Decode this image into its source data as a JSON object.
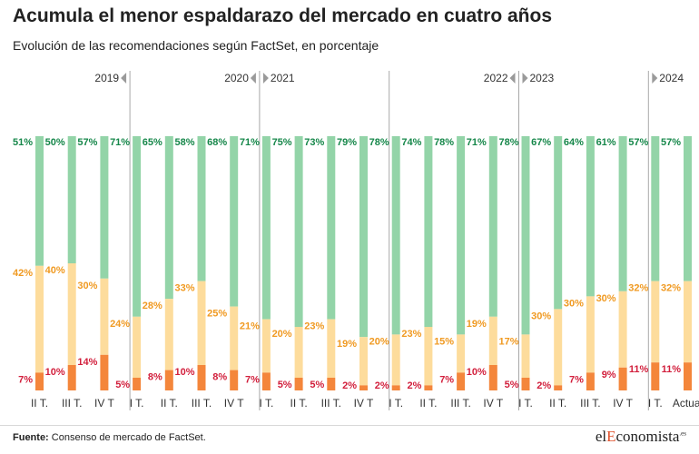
{
  "header": {
    "title": "Acumula el menor espaldarazo del mercado en cuatro años",
    "subtitle": "Evolución de las recomendaciones según FactSet, en porcentaje"
  },
  "footer": {
    "source_label": "Fuente:",
    "source_text": "Consenso de mercado de FactSet.",
    "logo_pre": "el",
    "logo_accent": "E",
    "logo_post": "conomista",
    "logo_suffix": ".es"
  },
  "colors": {
    "buy": "#93d4a8",
    "hold": "#fddc9c",
    "sell": "#f4863b",
    "buy_text": "#16874a",
    "hold_text": "#f09a22",
    "sell_text": "#d21f3c"
  },
  "chart_data": {
    "type": "bar",
    "stacked": true,
    "ylim": [
      0,
      100
    ],
    "categories": [
      "II T.",
      "III T.",
      "IV T",
      "I T.",
      "II T.",
      "III T.",
      "IV T",
      "I T.",
      "II T.",
      "III T.",
      "IV T",
      "I T.",
      "II T.",
      "III T.",
      "IV T",
      "I T.",
      "II T.",
      "III T.",
      "IV T",
      "I T.",
      "Actual"
    ],
    "series": [
      {
        "key": "sell",
        "values": [
          7,
          10,
          14,
          5,
          8,
          10,
          8,
          7,
          5,
          5,
          2,
          2,
          2,
          7,
          10,
          5,
          2,
          7,
          9,
          11,
          11
        ]
      },
      {
        "key": "hold",
        "values": [
          42,
          40,
          30,
          24,
          28,
          33,
          25,
          21,
          20,
          23,
          19,
          20,
          23,
          15,
          19,
          17,
          30,
          30,
          30,
          32,
          32
        ]
      },
      {
        "key": "buy",
        "values": [
          51,
          50,
          57,
          71,
          65,
          58,
          68,
          71,
          75,
          73,
          79,
          78,
          74,
          78,
          71,
          78,
          67,
          64,
          61,
          57,
          57
        ]
      }
    ],
    "year_markers": [
      {
        "label": "2019",
        "side": "left",
        "after_index": 2
      },
      {
        "label": "2020",
        "side": "left",
        "after_index": 6
      },
      {
        "label": "2021",
        "side": "right",
        "after_index": 6
      },
      {
        "label": "2022",
        "side": "left",
        "after_index": 14
      },
      {
        "label": "2023",
        "side": "right",
        "after_index": 14
      },
      {
        "label": "2024",
        "side": "right",
        "after_index": 18
      }
    ],
    "extra_dividers_after_index": [
      10
    ]
  }
}
